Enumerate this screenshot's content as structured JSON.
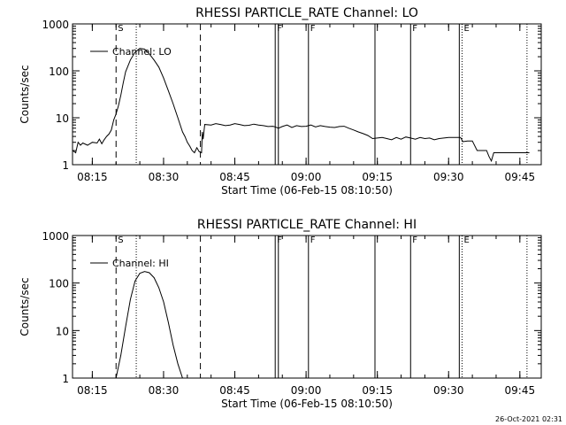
{
  "chart_data": [
    {
      "type": "line",
      "title": "RHESSI PARTICLE_RATE Channel: LO",
      "xlabel": "Start Time (06-Feb-15 08:10:50)",
      "ylabel": "Counts/sec",
      "legend": "Channel: LO",
      "legend_position": "top-left",
      "y_scale": "log",
      "ylim": [
        1,
        1000
      ],
      "xlim": [
        "08:10:50",
        "09:49:30"
      ],
      "x_ticks": [
        "08:15",
        "08:30",
        "08:45",
        "09:00",
        "09:15",
        "09:30",
        "09:45"
      ],
      "y_ticks": [
        "1",
        "10",
        "100",
        "1000"
      ],
      "markers": [
        {
          "time": "08:20:00",
          "style": "dashed",
          "label": "S"
        },
        {
          "time": "08:24:15",
          "style": "dotted",
          "label": ""
        },
        {
          "time": "08:37:45",
          "style": "dashed",
          "label": ""
        },
        {
          "time": "08:53:30",
          "style": "solid",
          "label": "F"
        },
        {
          "time": "08:54:10",
          "style": "solid",
          "label": ""
        },
        {
          "time": "09:00:30",
          "style": "solid",
          "label": "F"
        },
        {
          "time": "09:14:30",
          "style": "solid",
          "label": ""
        },
        {
          "time": "09:22:00",
          "style": "solid",
          "label": "F"
        },
        {
          "time": "09:32:15",
          "style": "solid",
          "label": ""
        },
        {
          "time": "09:32:50",
          "style": "dotted",
          "label": "E"
        },
        {
          "time": "09:46:30",
          "style": "dotted",
          "label": ""
        }
      ],
      "series": [
        {
          "name": "Channel: LO",
          "x": [
            "08:10:50",
            "08:11:30",
            "08:12:00",
            "08:12:30",
            "08:13:00",
            "08:14:00",
            "08:15:00",
            "08:16:00",
            "08:16:30",
            "08:17:00",
            "08:17:30",
            "08:18:00",
            "08:18:30",
            "08:19:00",
            "08:19:30",
            "08:20:00",
            "08:20:30",
            "08:21:00",
            "08:21:30",
            "08:22:00",
            "08:23:00",
            "08:24:00",
            "08:25:00",
            "08:26:00",
            "08:27:00",
            "08:28:00",
            "08:29:00",
            "08:30:00",
            "08:31:00",
            "08:32:00",
            "08:33:00",
            "08:34:00",
            "08:34:30",
            "08:35:00",
            "08:35:30",
            "08:36:00",
            "08:36:30",
            "08:37:00",
            "08:37:30",
            "08:38:00",
            "08:38:10",
            "08:38:20",
            "08:38:40",
            "08:40:00",
            "08:41:00",
            "08:42:00",
            "08:43:00",
            "08:44:00",
            "08:45:00",
            "08:46:00",
            "08:47:00",
            "08:48:00",
            "08:49:00",
            "08:50:00",
            "08:51:00",
            "08:52:00",
            "08:53:00",
            "08:53:30",
            "08:54:10",
            "08:55:00",
            "08:56:00",
            "08:57:00",
            "08:58:00",
            "08:59:00",
            "09:00:00",
            "09:01:00",
            "09:02:00",
            "09:03:00",
            "09:04:00",
            "09:05:00",
            "09:06:00",
            "09:07:00",
            "09:08:00",
            "09:09:00",
            "09:10:00",
            "09:11:00",
            "09:12:00",
            "09:13:00",
            "09:14:00",
            "09:15:00",
            "09:16:00",
            "09:17:00",
            "09:18:00",
            "09:19:00",
            "09:20:00",
            "09:21:00",
            "09:22:00",
            "09:23:00",
            "09:24:00",
            "09:25:00",
            "09:26:00",
            "09:27:00",
            "09:28:00",
            "09:29:00",
            "09:30:00",
            "09:31:00",
            "09:32:00",
            "09:32:30",
            "09:33:00",
            "09:34:00",
            "09:35:00",
            "09:36:00",
            "09:37:00",
            "09:38:00",
            "09:38:30",
            "09:39:00",
            "09:39:30",
            "09:40:00",
            "09:42:00",
            "09:44:00",
            "09:46:00",
            "09:47:00"
          ],
          "y": [
            2.0,
            1.8,
            3.0,
            2.6,
            2.9,
            2.6,
            3.0,
            2.9,
            3.5,
            2.8,
            3.4,
            4.0,
            4.5,
            5.5,
            9.0,
            12,
            18,
            30,
            55,
            95,
            170,
            250,
            300,
            290,
            230,
            170,
            120,
            70,
            38,
            20,
            10,
            5.0,
            4.0,
            3.0,
            2.5,
            2.0,
            1.8,
            2.3,
            1.9,
            1.8,
            5.0,
            3.5,
            7.2,
            7.0,
            7.5,
            7.2,
            6.8,
            7.0,
            7.5,
            7.2,
            6.8,
            6.9,
            7.3,
            7.0,
            6.8,
            6.5,
            6.6,
            6.4,
            6.0,
            6.5,
            7.0,
            6.2,
            6.8,
            6.5,
            6.6,
            7.0,
            6.4,
            6.8,
            6.5,
            6.3,
            6.2,
            6.5,
            6.6,
            6.0,
            5.5,
            5.0,
            4.6,
            4.2,
            3.6,
            3.7,
            3.8,
            3.6,
            3.4,
            3.8,
            3.5,
            3.9,
            3.7,
            3.5,
            3.8,
            3.6,
            3.7,
            3.4,
            3.6,
            3.7,
            3.8,
            3.8,
            3.8,
            3.8,
            3.1,
            3.2,
            3.2,
            2.0,
            2.0,
            2.0,
            1.5,
            1.2,
            1.8,
            1.8,
            1.8,
            1.8,
            1.8,
            1.8
          ]
        }
      ]
    },
    {
      "type": "line",
      "title": "RHESSI PARTICLE_RATE Channel: HI",
      "xlabel": "Start Time (06-Feb-15 08:10:50)",
      "ylabel": "Counts/sec",
      "legend": "Channel: HI",
      "legend_position": "top-left",
      "y_scale": "log",
      "ylim": [
        1,
        1000
      ],
      "xlim": [
        "08:10:50",
        "09:49:30"
      ],
      "x_ticks": [
        "08:15",
        "08:30",
        "08:45",
        "09:00",
        "09:15",
        "09:30",
        "09:45"
      ],
      "y_ticks": [
        "1",
        "10",
        "100",
        "1000"
      ],
      "markers": [
        {
          "time": "08:20:00",
          "style": "dashed",
          "label": "S"
        },
        {
          "time": "08:24:15",
          "style": "dotted",
          "label": ""
        },
        {
          "time": "08:37:45",
          "style": "dashed",
          "label": ""
        },
        {
          "time": "08:53:30",
          "style": "solid",
          "label": "F"
        },
        {
          "time": "08:54:10",
          "style": "solid",
          "label": ""
        },
        {
          "time": "09:00:30",
          "style": "solid",
          "label": "F"
        },
        {
          "time": "09:14:30",
          "style": "solid",
          "label": ""
        },
        {
          "time": "09:22:00",
          "style": "solid",
          "label": "F"
        },
        {
          "time": "09:32:15",
          "style": "solid",
          "label": ""
        },
        {
          "time": "09:32:50",
          "style": "dotted",
          "label": "E"
        },
        {
          "time": "09:46:30",
          "style": "dotted",
          "label": ""
        }
      ],
      "series": [
        {
          "name": "Channel: HI",
          "x": [
            "08:20:00",
            "08:21:00",
            "08:22:00",
            "08:23:00",
            "08:24:00",
            "08:25:00",
            "08:26:00",
            "08:27:00",
            "08:28:00",
            "08:29:00",
            "08:30:00",
            "08:31:00",
            "08:32:00",
            "08:33:00",
            "08:34:00"
          ],
          "y": [
            1.0,
            3.0,
            12,
            45,
            110,
            160,
            175,
            165,
            130,
            80,
            40,
            15,
            5,
            2,
            1.0
          ]
        }
      ]
    }
  ],
  "footer": {
    "timestamp": "26-Oct-2021 02:31"
  }
}
